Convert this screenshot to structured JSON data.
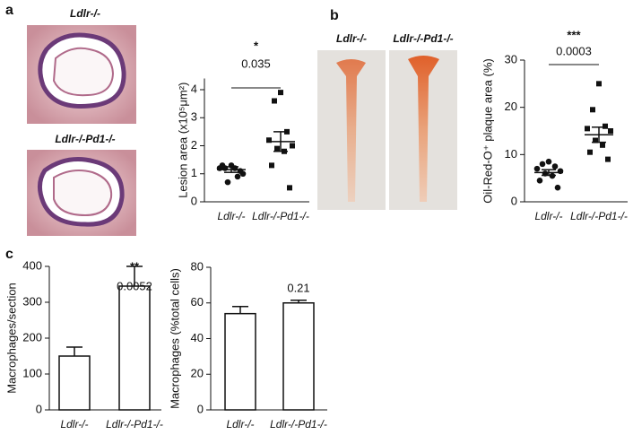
{
  "panels": [
    "a",
    "b",
    "c"
  ],
  "image_labels": {
    "a_top": "Ldlr-/-",
    "a_bottom": "Ldlr-/-Pd1-/-",
    "b_left": "Ldlr-/-",
    "b_right": "Ldlr-/-Pd1-/-"
  },
  "chart_data": [
    {
      "type": "dot",
      "y_label": "Lesion area (x10⁵μm²)",
      "categories": [
        "Ldlr-/-",
        "Ldlr-/-Pd1-/-"
      ],
      "markers": [
        "circle",
        "square"
      ],
      "values": [
        [
          1.3,
          1.2,
          0.9,
          1.2,
          1.0,
          0.7,
          1.2,
          1.3,
          1.1
        ],
        [
          3.9,
          3.6,
          2.5,
          2.2,
          2.0,
          1.9,
          1.8,
          1.3,
          0.5
        ]
      ],
      "means": [
        1.15,
        2.15
      ],
      "errors": [
        0.1,
        0.35
      ],
      "ylim": [
        0,
        4.4
      ],
      "yticks": [
        0,
        1,
        2,
        3,
        4
      ],
      "significance": {
        "stars": "*",
        "p": "0.035"
      }
    },
    {
      "type": "dot",
      "y_label": "Oil-Red-O⁺ plaque area (%)",
      "categories": [
        "Ldlr-/-",
        "Ldlr-/-Pd1-/-"
      ],
      "markers": [
        "circle",
        "square"
      ],
      "values": [
        [
          8.5,
          8,
          7.5,
          7,
          6.5,
          6,
          5.5,
          4.5,
          3
        ],
        [
          25,
          19.5,
          16,
          15.5,
          15,
          13,
          12,
          10.5,
          9
        ]
      ],
      "means": [
        6.2,
        14.2
      ],
      "errors": [
        0.6,
        1.6
      ],
      "ylim": [
        0,
        30
      ],
      "yticks": [
        0,
        10,
        20,
        30
      ],
      "significance": {
        "stars": "***",
        "p": "0.0003"
      }
    },
    {
      "type": "bar",
      "y_label": "Macrophages/section",
      "categories": [
        "Ldlr-/-",
        "Ldlr-/-Pd1-/-"
      ],
      "values": [
        150,
        345
      ],
      "errors": [
        25,
        55
      ],
      "ylim": [
        0,
        400
      ],
      "yticks": [
        0,
        100,
        200,
        300,
        400
      ],
      "significance": {
        "stars": "**",
        "p": "0.0052"
      }
    },
    {
      "type": "bar",
      "y_label": "Macrophages (%total cells)",
      "categories": [
        "Ldlr-/-",
        "Ldlr-/-Pd1-/-"
      ],
      "values": [
        54,
        60
      ],
      "errors": [
        4,
        1.5
      ],
      "ylim": [
        0,
        80
      ],
      "yticks": [
        0,
        20,
        40,
        60,
        80
      ],
      "significance": {
        "p": "0.21"
      }
    }
  ]
}
